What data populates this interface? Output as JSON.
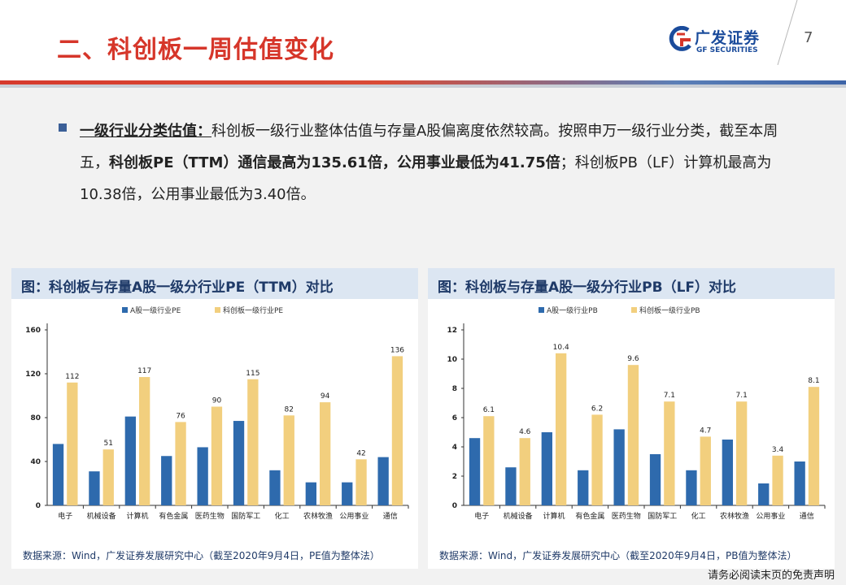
{
  "header": {
    "title": "二、科创板一周估值变化",
    "logo_cn": "广发证券",
    "logo_en": "GF SECURITIES",
    "page_number": "7"
  },
  "bullet": {
    "label": "一级行业分类估值：",
    "text_1": "科创板一级行业整体估值与存量A股偏离度依然较高。按照申万一级行业分类，截至本周五，",
    "bold_1": "科创板PE（TTM）通信最高为135.61倍，公用事业最低为41.75倍",
    "text_2": "；科创板PB（LF）计算机最高为10.38倍，公用事业最低为3.40倍。"
  },
  "panel_left": {
    "title": "图：科创板与存量A股一级分行业PE（TTM）对比",
    "source": "数据来源：Wind，广发证券发展研究中心（截至2020年9月4日，PE值为整体法）"
  },
  "panel_right": {
    "title": "图：科创板与存量A股一级分行业PB（LF）对比",
    "source": "数据来源：Wind，广发证券发展研究中心（截至2020年9月4日，PB值为整体法）"
  },
  "disclaimer": "请务必阅读末页的免责声明",
  "colors": {
    "a_share": "#2e6aad",
    "star": "#f2cf7e",
    "title_red": "#d6362a"
  },
  "chart_data": [
    {
      "type": "bar",
      "categories": [
        "电子",
        "机械设备",
        "计算机",
        "有色金属",
        "医药生物",
        "国防军工",
        "化工",
        "农林牧渔",
        "公用事业",
        "通信"
      ],
      "series": [
        {
          "name": "A股一级行业PE",
          "values": [
            56,
            31,
            81,
            45,
            53,
            77,
            32,
            21,
            21,
            44
          ],
          "labels": [
            "",
            "",
            "",
            "",
            "",
            "",
            "",
            "",
            "",
            ""
          ]
        },
        {
          "name": "科创板一级行业PE",
          "values": [
            112,
            51,
            117,
            76,
            90,
            115,
            82,
            94,
            42,
            136
          ],
          "labels": [
            "112",
            "51",
            "117",
            "76",
            "90",
            "115",
            "82",
            "94",
            "42",
            "136"
          ]
        }
      ],
      "yticks": [
        "0",
        "40",
        "80",
        "120",
        "160"
      ],
      "ylim": [
        0,
        160
      ],
      "legend": "top-center"
    },
    {
      "type": "bar",
      "categories": [
        "电子",
        "机械设备",
        "计算机",
        "有色金属",
        "医药生物",
        "国防军工",
        "化工",
        "农林牧渔",
        "公用事业",
        "通信"
      ],
      "series": [
        {
          "name": "A股一级行业PB",
          "values": [
            4.6,
            2.6,
            5.0,
            2.4,
            5.2,
            3.5,
            2.4,
            4.5,
            1.5,
            3.0
          ],
          "labels": [
            "",
            "",
            "",
            "",
            "",
            "",
            "",
            "",
            "",
            ""
          ]
        },
        {
          "name": "科创板一级行业PB",
          "values": [
            6.1,
            4.6,
            10.4,
            6.2,
            9.6,
            7.1,
            4.7,
            7.1,
            3.4,
            8.1
          ],
          "labels": [
            "6.1",
            "4.6",
            "10.4",
            "6.2",
            "9.6",
            "7.1",
            "4.7",
            "7.1",
            "3.4",
            "8.1"
          ]
        }
      ],
      "yticks": [
        "0",
        "2",
        "4",
        "6",
        "8",
        "10",
        "12"
      ],
      "ylim": [
        0,
        12
      ],
      "legend": "top-center"
    }
  ]
}
